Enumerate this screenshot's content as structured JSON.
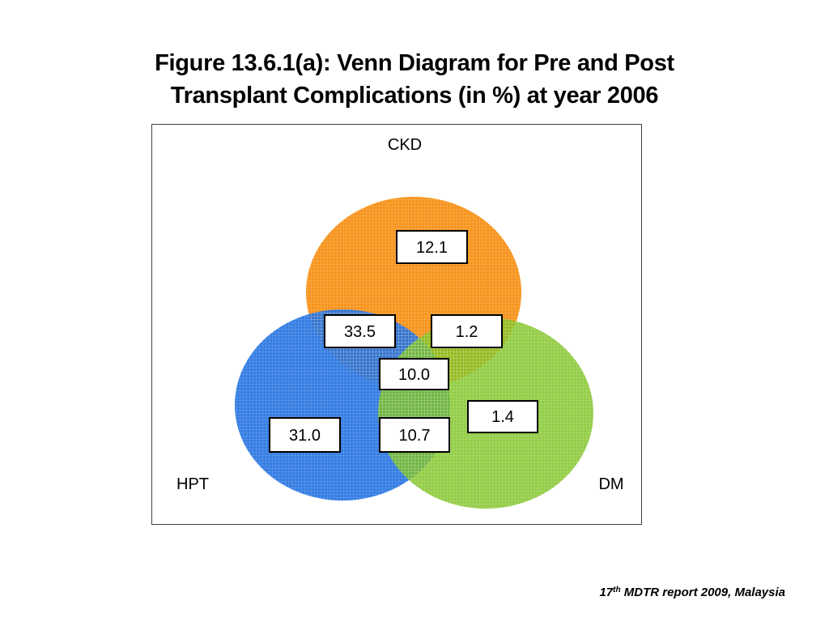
{
  "title": {
    "line1": "Figure 13.6.1(a): Venn Diagram for Pre and Post",
    "line2": "Transplant Complications (in %) at year 2006"
  },
  "sets": [
    {
      "key": "ckd",
      "label": "CKD",
      "color": "#F7941D"
    },
    {
      "key": "hpt",
      "label": "HPT",
      "color": "#1E6FE0"
    },
    {
      "key": "dm",
      "label": "DM",
      "color": "#7DC21E"
    }
  ],
  "regions": [
    {
      "sets": [
        "CKD"
      ],
      "value": "12.1"
    },
    {
      "sets": [
        "CKD",
        "HPT"
      ],
      "value": "33.5"
    },
    {
      "sets": [
        "CKD",
        "DM"
      ],
      "value": "1.2"
    },
    {
      "sets": [
        "CKD",
        "HPT",
        "DM"
      ],
      "value": "10.0"
    },
    {
      "sets": [
        "DM"
      ],
      "value": "1.4"
    },
    {
      "sets": [
        "HPT"
      ],
      "value": "31.0"
    },
    {
      "sets": [
        "HPT",
        "DM"
      ],
      "value": "10.7"
    }
  ],
  "source": {
    "num": "17",
    "sup": "th",
    "rest": " MDTR report 2009, Malaysia"
  }
}
